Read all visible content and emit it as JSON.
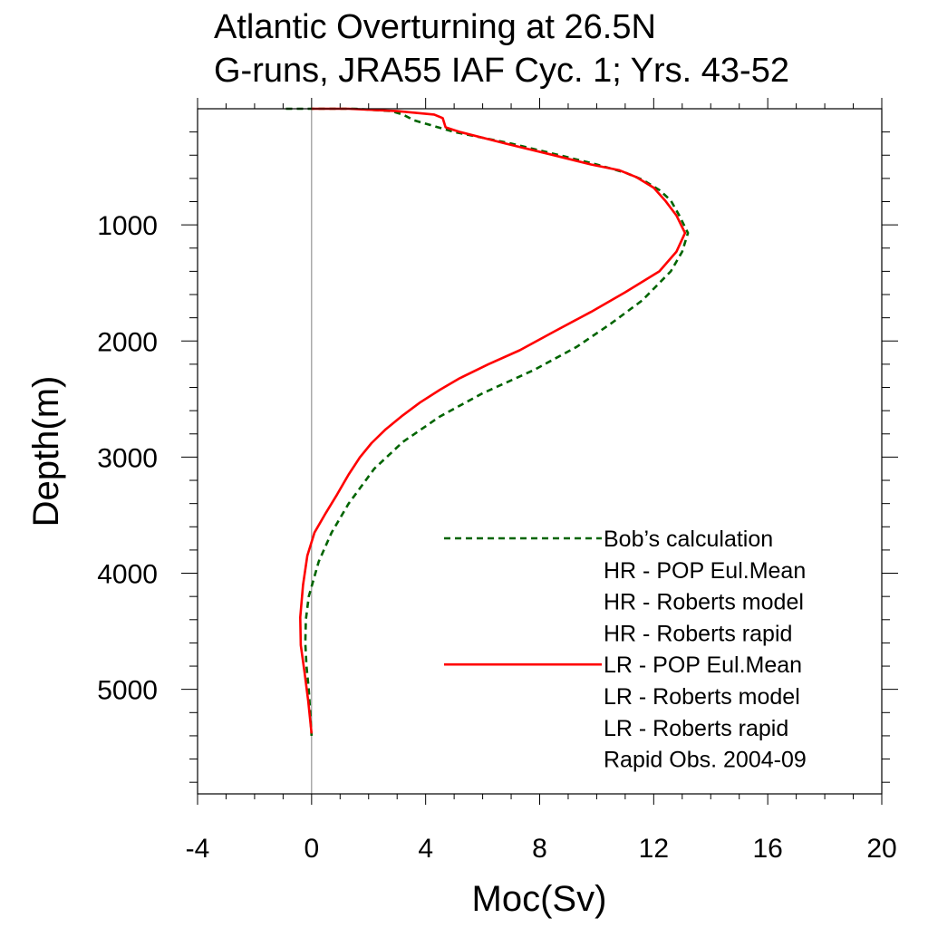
{
  "chart_data": {
    "type": "line",
    "title": "Atlantic Overturning at 26.5N",
    "subtitle": "G-runs, JRA55 IAF Cyc. 1; Yrs. 43-52",
    "xlabel": "Moc(Sv)",
    "ylabel": "Depth(m)",
    "xlim": [
      -4,
      20
    ],
    "ylim": [
      5900,
      0
    ],
    "y_inverted": true,
    "x_ticks": [
      "-4",
      "0",
      "4",
      "8",
      "12",
      "16",
      "20"
    ],
    "x_tick_values": [
      -4,
      0,
      4,
      8,
      12,
      16,
      20
    ],
    "y_ticks": [
      "1000",
      "2000",
      "3000",
      "4000",
      "5000"
    ],
    "y_tick_values": [
      1000,
      2000,
      3000,
      4000,
      5000
    ],
    "grid": false,
    "zero_line": true,
    "legend_position": "bottom-right",
    "legend": [
      {
        "label": "Bob’s calculation",
        "style": "dashed",
        "color": "#006400"
      },
      {
        "label": "HR - POP Eul.Mean",
        "style": "none",
        "color": ""
      },
      {
        "label": "HR - Roberts model",
        "style": "none",
        "color": ""
      },
      {
        "label": "HR - Roberts rapid",
        "style": "none",
        "color": ""
      },
      {
        "label": "LR - POP Eul.Mean",
        "style": "solid",
        "color": "#ff0000"
      },
      {
        "label": "LR - Roberts model",
        "style": "none",
        "color": ""
      },
      {
        "label": "LR - Roberts rapid",
        "style": "none",
        "color": ""
      },
      {
        "label": "Rapid Obs. 2004-09",
        "style": "none",
        "color": ""
      }
    ],
    "series": [
      {
        "name": "Bob’s calculation",
        "color": "#006400",
        "dash": "dashed",
        "points": [
          [
            -0.9,
            0
          ],
          [
            1.5,
            0
          ],
          [
            2.8,
            20
          ],
          [
            3.2,
            50
          ],
          [
            3.6,
            100
          ],
          [
            5.0,
            200
          ],
          [
            7.0,
            300
          ],
          [
            8.7,
            400
          ],
          [
            10.0,
            480
          ],
          [
            11.0,
            550
          ],
          [
            11.6,
            610
          ],
          [
            12.2,
            700
          ],
          [
            12.6,
            790
          ],
          [
            12.9,
            920
          ],
          [
            13.2,
            1070
          ],
          [
            13.0,
            1230
          ],
          [
            12.6,
            1400
          ],
          [
            11.6,
            1650
          ],
          [
            10.5,
            1850
          ],
          [
            9.3,
            2050
          ],
          [
            7.8,
            2250
          ],
          [
            6.0,
            2450
          ],
          [
            4.5,
            2650
          ],
          [
            3.2,
            2870
          ],
          [
            2.2,
            3100
          ],
          [
            1.3,
            3400
          ],
          [
            0.7,
            3650
          ],
          [
            0.25,
            3900
          ],
          [
            -0.1,
            4200
          ],
          [
            -0.2,
            4400
          ],
          [
            -0.22,
            4600
          ],
          [
            -0.18,
            4800
          ],
          [
            -0.1,
            5000
          ],
          [
            -0.05,
            5200
          ],
          [
            0.0,
            5400
          ]
        ]
      },
      {
        "name": "LR - POP Eul.Mean",
        "color": "#ff0000",
        "dash": "solid",
        "points": [
          [
            0.0,
            0
          ],
          [
            1.3,
            0
          ],
          [
            3.0,
            20
          ],
          [
            4.3,
            50
          ],
          [
            4.6,
            80
          ],
          [
            4.7,
            160
          ],
          [
            5.2,
            200
          ],
          [
            6.8,
            300
          ],
          [
            8.5,
            400
          ],
          [
            9.8,
            480
          ],
          [
            10.8,
            530
          ],
          [
            11.4,
            590
          ],
          [
            12.0,
            680
          ],
          [
            12.4,
            790
          ],
          [
            12.8,
            920
          ],
          [
            13.1,
            1070
          ],
          [
            12.8,
            1230
          ],
          [
            12.2,
            1400
          ],
          [
            11.0,
            1580
          ],
          [
            9.8,
            1750
          ],
          [
            8.5,
            1920
          ],
          [
            7.3,
            2080
          ],
          [
            6.2,
            2200
          ],
          [
            5.2,
            2320
          ],
          [
            4.5,
            2420
          ],
          [
            3.8,
            2530
          ],
          [
            3.2,
            2640
          ],
          [
            2.6,
            2760
          ],
          [
            2.1,
            2880
          ],
          [
            1.7,
            3000
          ],
          [
            1.3,
            3150
          ],
          [
            0.9,
            3320
          ],
          [
            0.5,
            3480
          ],
          [
            0.1,
            3650
          ],
          [
            -0.15,
            3850
          ],
          [
            -0.3,
            4100
          ],
          [
            -0.4,
            4380
          ],
          [
            -0.38,
            4620
          ],
          [
            -0.25,
            4850
          ],
          [
            -0.12,
            5100
          ],
          [
            0.0,
            5380
          ]
        ]
      }
    ]
  }
}
